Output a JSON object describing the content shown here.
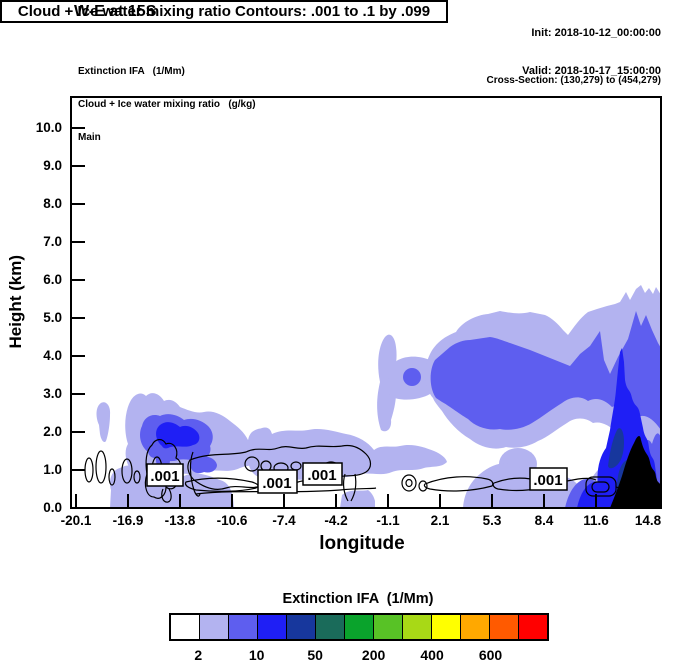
{
  "header": {
    "title": "W-E at 15S",
    "init_line": "Init: 2018-10-12_00:00:00",
    "valid_line": "Valid: 2018-10-17_15:00:00",
    "legend_lines": [
      "Extinction IFA   (1/Mm)",
      "Cloud + Ice water mixing ratio   (g/kg)",
      "Main"
    ],
    "cross_section": "Cross-Section: (130,279) to (454,279)"
  },
  "plot": {
    "contour_info": "Cloud + Ice water mixing ratio Contours: .001 to .1 by .099",
    "xlabel": "longitude",
    "ylabel": "Height (km)",
    "contour_label": ".001",
    "x_tick_labels": [
      "-20.1",
      "-16.9",
      "-13.8",
      "-10.6",
      "-7.4",
      "-4.2",
      "-1.1",
      "2.1",
      "5.3",
      "8.4",
      "11.6",
      "14.8"
    ],
    "y_tick_labels": [
      "0.0",
      "1.0",
      "2.0",
      "3.0",
      "4.0",
      "5.0",
      "6.0",
      "7.0",
      "8.0",
      "9.0",
      "10.0"
    ]
  },
  "colorbar": {
    "title": "Extinction IFA  (1/Mm)",
    "colors": [
      "#ffffff",
      "#b3b3f0",
      "#5e5eef",
      "#1f1ff5",
      "#17379d",
      "#1a6b5a",
      "#0aa32c",
      "#58c226",
      "#a8d916",
      "#ffff00",
      "#ffa800",
      "#ff5a00",
      "#ff0000"
    ],
    "tick_labels": [
      {
        "text": "2",
        "boundary": 1
      },
      {
        "text": "10",
        "boundary": 3
      },
      {
        "text": "50",
        "boundary": 5
      },
      {
        "text": "200",
        "boundary": 7
      },
      {
        "text": "400",
        "boundary": 9
      },
      {
        "text": "600",
        "boundary": 11
      }
    ]
  },
  "chart_data": {
    "type": "heatmap",
    "subtype": "filled-contour-vertical-cross-section",
    "title": "W-E at 15S",
    "box_title": "Cloud + Ice water mixing ratio Contours: .001 to .1 by .099",
    "xlabel": "longitude",
    "ylabel": "Height (km)",
    "xlim": [
      -20.1,
      14.8
    ],
    "ylim": [
      0.0,
      10.0
    ],
    "x_ticks": [
      -20.1,
      -16.9,
      -13.8,
      -10.6,
      -7.4,
      -4.2,
      -1.1,
      2.1,
      5.3,
      8.4,
      11.6,
      14.8
    ],
    "y_ticks": [
      0,
      1,
      2,
      3,
      4,
      5,
      6,
      7,
      8,
      9,
      10
    ],
    "grid": false,
    "fill_field": {
      "name": "Extinction IFA",
      "units": "1/Mm",
      "legend_position": "bottom",
      "n_color_bins": 13,
      "labeled_values": [
        2,
        10,
        50,
        200,
        400,
        600
      ]
    },
    "contour_field": {
      "name": "Cloud + Ice water mixing ratio",
      "units": "g/kg",
      "levels": [
        0.001,
        0.1
      ],
      "labels": [
        ".001"
      ]
    },
    "contour_label_points": [
      {
        "x": -14.7,
        "y": 0.9
      },
      {
        "x": -7.8,
        "y": 0.7
      },
      {
        "x": -5.1,
        "y": 0.9
      },
      {
        "x": 8.7,
        "y": 0.8
      }
    ],
    "shaded_features": [
      {
        "region": "western low-level plume",
        "x_range": [
          -18.9,
          -9.5
        ],
        "y_range": [
          0,
          3.1
        ],
        "peak_bin": "10-25 1/Mm core near x=-14.5, y=1.5 km"
      },
      {
        "region": "shallow layer near 1 km outlined by .001 g/kg cloud contour",
        "x_range": [
          -19,
          9
        ],
        "y_range": [
          0.4,
          1.3
        ],
        "peak_bin": "2-5 1/Mm"
      },
      {
        "region": "elevated cloud layer",
        "x_range": [
          -1.0,
          14.8
        ],
        "y_range": [
          2.4,
          5.6
        ],
        "peak_bin": "5-10 1/Mm"
      },
      {
        "region": "deep eastern column",
        "x_range": [
          8.0,
          14.8
        ],
        "y_range": [
          0,
          5.6
        ],
        "peak_bin": ">600 1/Mm (black fill) near surface at x=12 to 14.8, up to 1.9 km"
      }
    ]
  }
}
